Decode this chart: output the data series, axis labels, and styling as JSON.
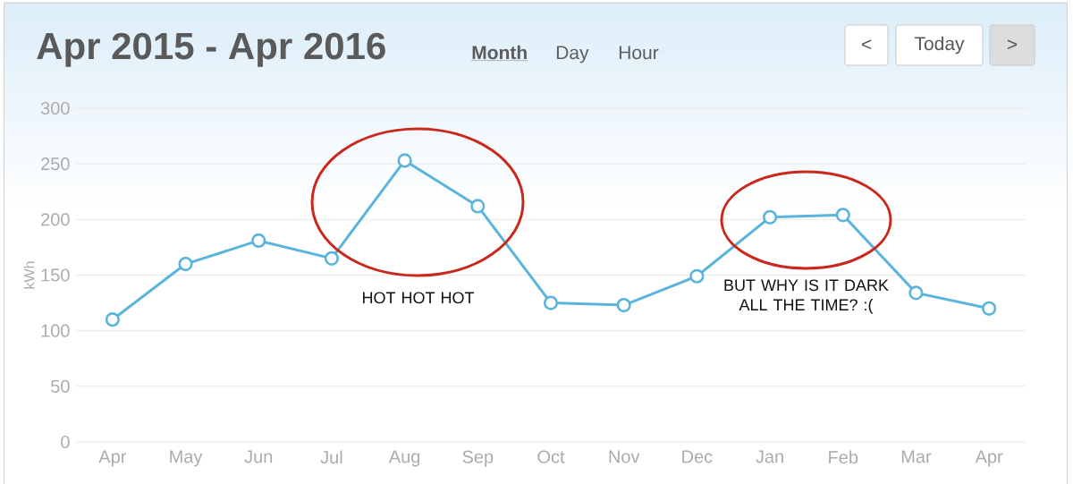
{
  "chart_data": {
    "type": "line",
    "title": "Apr 2015 - Apr 2016",
    "ylabel": "kWh",
    "categories": [
      "Apr",
      "May",
      "Jun",
      "Jul",
      "Aug",
      "Sep",
      "Oct",
      "Nov",
      "Dec",
      "Jan",
      "Feb",
      "Mar",
      "Apr"
    ],
    "values": [
      110,
      160,
      181,
      165,
      253,
      212,
      125,
      123,
      149,
      202,
      204,
      134,
      120
    ],
    "color": "#5ab4dc",
    "marker": "circle",
    "line_style": "solid",
    "ylim": [
      0,
      300
    ],
    "yticks": [
      0,
      50,
      100,
      150,
      200,
      250,
      300
    ],
    "grid": "y",
    "annotations": [
      "Month",
      "Day",
      "Hour",
      "<",
      "Today",
      ">",
      "HOT HOT HOT",
      "BUT WHY IS IT DARK ALL THE TIME? :("
    ]
  }
}
